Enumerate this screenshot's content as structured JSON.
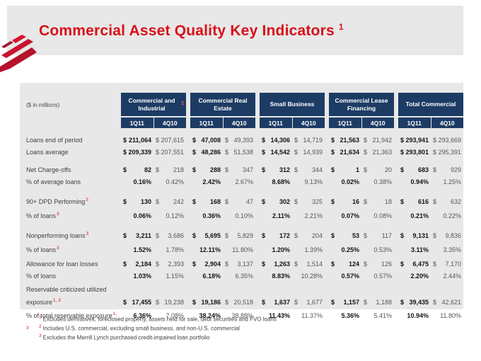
{
  "slide": {
    "title": "Commercial Asset Quality Key Indicators",
    "title_sup": "1",
    "colors": {
      "accent_red": "#d90f18",
      "header_navy": "#1d3c65",
      "panel_gray": "#e8e8e8",
      "primary_value": "#141414",
      "secondary_value": "#565656"
    },
    "footnotes": [
      {
        "sup": "1",
        "text": "Excludes derivatives, foreclosed property, assets held for sale, debt securities and FVO loans"
      },
      {
        "sup": "2",
        "text": "Includes U.S. commercial, excluding small business, and non-U.S. commercial"
      },
      {
        "sup": "3",
        "text": "Excludes the Merrill Lynch purchased credit-impaired loan portfolio"
      }
    ]
  },
  "table": {
    "units_label": "($ in millions)",
    "period_headers": [
      "1Q11",
      "4Q10"
    ],
    "groups": [
      {
        "name": "Commercial and Industrial",
        "sup": "2"
      },
      {
        "name": "Commercial Real Estate"
      },
      {
        "name": "Small Business"
      },
      {
        "name": "Commercial Lease Financing"
      },
      {
        "name": "Total Commercial"
      }
    ],
    "rows": [
      {
        "label": "Loans end of period",
        "kind": "dollar",
        "values": [
          [
            "211,064",
            "207,615"
          ],
          [
            "47,008",
            "49,393"
          ],
          [
            "14,306",
            "14,719"
          ],
          [
            "21,563",
            "21,942"
          ],
          [
            "293,941",
            "293,669"
          ]
        ]
      },
      {
        "label": "Loans average",
        "kind": "dollar",
        "values": [
          [
            "209,339",
            "207,551"
          ],
          [
            "48,286",
            "51,538"
          ],
          [
            "14,542",
            "14,939"
          ],
          [
            "21,634",
            "21,363"
          ],
          [
            "293,801",
            "295,391"
          ]
        ]
      },
      {
        "label": "Net Charge-offs",
        "kind": "dollar",
        "gap": true,
        "values": [
          [
            "82",
            "218"
          ],
          [
            "288",
            "347"
          ],
          [
            "312",
            "344"
          ],
          [
            "1",
            "20"
          ],
          [
            "683",
            "929"
          ]
        ]
      },
      {
        "label": "% of average loans",
        "kind": "percent",
        "values": [
          [
            "0.16%",
            "0.42%"
          ],
          [
            "2.42%",
            "2.67%"
          ],
          [
            "8.68%",
            "9.13%"
          ],
          [
            "0.02%",
            "0.38%"
          ],
          [
            "0.94%",
            "1.25%"
          ]
        ]
      },
      {
        "label": "90+ DPD Performing",
        "sup": "3",
        "kind": "dollar",
        "gap": true,
        "values": [
          [
            "130",
            "242"
          ],
          [
            "168",
            "47"
          ],
          [
            "302",
            "325"
          ],
          [
            "16",
            "18"
          ],
          [
            "616",
            "632"
          ]
        ]
      },
      {
        "label": "% of loans",
        "sup": "3",
        "kind": "percent",
        "values": [
          [
            "0.06%",
            "0.12%"
          ],
          [
            "0.36%",
            "0.10%"
          ],
          [
            "2.11%",
            "2.21%"
          ],
          [
            "0.07%",
            "0.08%"
          ],
          [
            "0.21%",
            "0.22%"
          ]
        ]
      },
      {
        "label": "Nonperforming loans",
        "sup": "3",
        "kind": "dollar",
        "gap": true,
        "values": [
          [
            "3,211",
            "3,686"
          ],
          [
            "5,695",
            "5,829"
          ],
          [
            "172",
            "204"
          ],
          [
            "53",
            "117"
          ],
          [
            "9,131",
            "9,836"
          ]
        ]
      },
      {
        "label": "% of loans",
        "sup": "3",
        "kind": "percent",
        "values": [
          [
            "1.52%",
            "1.78%"
          ],
          [
            "12.11%",
            "11.80%"
          ],
          [
            "1.20%",
            "1.39%"
          ],
          [
            "0.25%",
            "0.53%"
          ],
          [
            "3.11%",
            "3.35%"
          ]
        ]
      },
      {
        "label": "Allowance for loan losses",
        "kind": "dollar",
        "gap_sm": true,
        "values": [
          [
            "2,184",
            "2,393"
          ],
          [
            "2,904",
            "3,137"
          ],
          [
            "1,263",
            "1,514"
          ],
          [
            "124",
            "126"
          ],
          [
            "6,475",
            "7,170"
          ]
        ]
      },
      {
        "label": "% of loans",
        "kind": "percent",
        "values": [
          [
            "1.03%",
            "1.15%"
          ],
          [
            "6.18%",
            "6.35%"
          ],
          [
            "8.83%",
            "10.28%"
          ],
          [
            "0.57%",
            "0.57%"
          ],
          [
            "2.20%",
            "2.44%"
          ]
        ]
      },
      {
        "label": "Reservable criticized utilized",
        "label2": "exposure",
        "sup": "1, 3",
        "kind": "dollar",
        "gap_sm": true,
        "values": [
          [
            "17,455",
            "19,238"
          ],
          [
            "19,186",
            "20,518"
          ],
          [
            "1,637",
            "1,677"
          ],
          [
            "1,157",
            "1,188"
          ],
          [
            "39,435",
            "42,621"
          ]
        ]
      },
      {
        "label": "% of total reservable exposure",
        "sup": "1, 3",
        "kind": "percent",
        "values": [
          [
            "6.36%",
            "7.08%"
          ],
          [
            "38.24%",
            "38.88%"
          ],
          [
            "11.43%",
            "11.37%"
          ],
          [
            "5.36%",
            "5.41%"
          ],
          [
            "10.94%",
            "11.80%"
          ]
        ]
      }
    ]
  }
}
